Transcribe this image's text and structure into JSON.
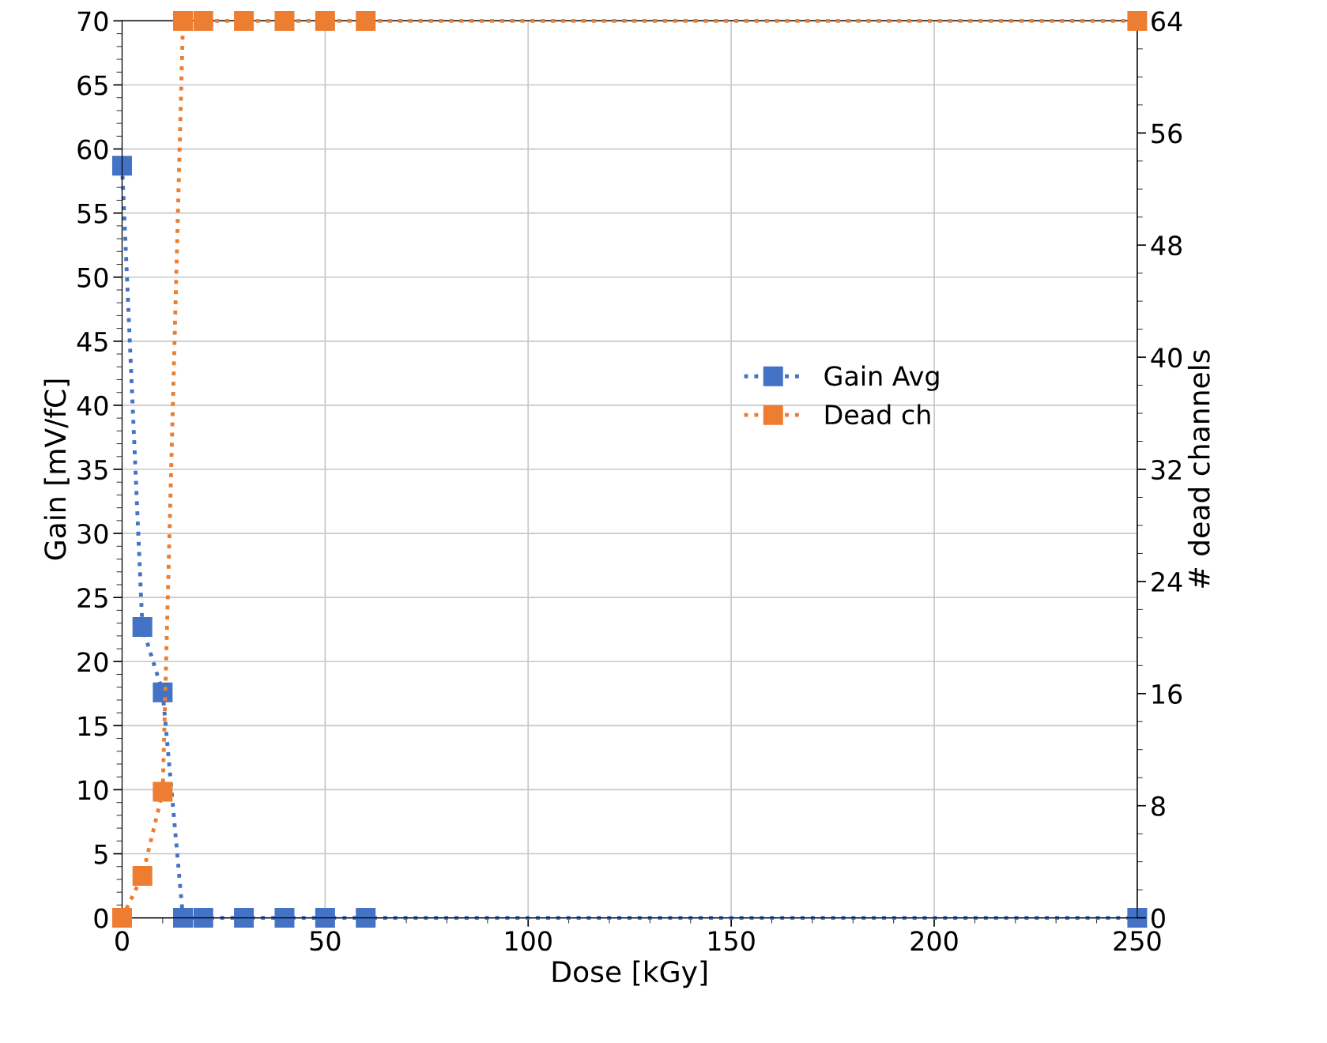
{
  "chart_data": {
    "type": "line",
    "xlabel": "Dose [kGy]",
    "ylabel": "Gain [mV/fC]",
    "y2label": "# dead channels",
    "series": [
      {
        "name": "Gain Avg",
        "color": "#4472c4",
        "x": [
          0,
          5,
          10,
          15,
          20,
          30,
          40,
          50,
          60,
          250
        ],
        "values": [
          58.7,
          22.7,
          17.6,
          0,
          0,
          0,
          0,
          0,
          0,
          0
        ]
      },
      {
        "name": "Dead ch",
        "color": "#ed7d31",
        "axis": "y2",
        "x": [
          0,
          5,
          10,
          15,
          20,
          30,
          40,
          50,
          60,
          250
        ],
        "values": [
          0,
          3,
          9,
          64,
          64,
          64,
          64,
          64,
          64,
          64
        ]
      }
    ],
    "xlim": [
      0,
      250
    ],
    "xticks": [
      0,
      50,
      100,
      150,
      200,
      250
    ],
    "ylim": [
      0,
      70
    ],
    "yticks": [
      0,
      5,
      10,
      15,
      20,
      25,
      30,
      35,
      40,
      45,
      50,
      55,
      60,
      65,
      70
    ],
    "y2lim": [
      0,
      64
    ],
    "y2ticks": [
      0,
      8,
      16,
      24,
      32,
      40,
      48,
      56,
      64
    ],
    "grid": true,
    "legend": "center right",
    "marker": "square",
    "line_style": "dotted"
  }
}
